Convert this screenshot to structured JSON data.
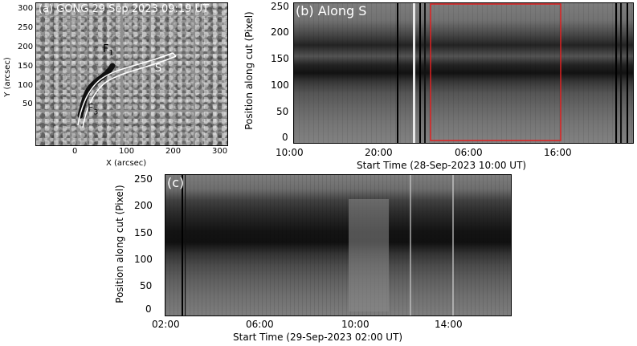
{
  "panels": {
    "a": {
      "label": "(a) GONG 29 Sep 2023 09:19 UT",
      "x_label": "X (arcsec)",
      "y_label": "Y (arcsec)",
      "x_ticks": [
        "0",
        "100",
        "200",
        "300"
      ],
      "y_ticks": [
        "300",
        "250",
        "200",
        "150",
        "100",
        "50"
      ],
      "annotations": {
        "f1": "F",
        "f1_sub": "1",
        "f3": "F",
        "f3_sub": "3",
        "s": "S"
      }
    },
    "b": {
      "label": "(b) Along S",
      "x_label": "Start Time (28-Sep-2023 10:00 UT)",
      "y_label": "Position along cut (Pixel)",
      "x_ticks": [
        "10:00",
        "20:00",
        "06:00",
        "16:00"
      ],
      "y_ticks": [
        "250",
        "200",
        "150",
        "100",
        "50",
        "0"
      ],
      "highlight_color": "#e02020"
    },
    "c": {
      "label": "(c)",
      "x_label": "Start Time (29-Sep-2023 02:00 UT)",
      "y_label": "Position along cut (Pixel)",
      "x_ticks": [
        "02:00",
        "06:00",
        "10:00",
        "14:00"
      ],
      "y_ticks": [
        "250",
        "200",
        "150",
        "100",
        "50",
        "0"
      ]
    }
  }
}
